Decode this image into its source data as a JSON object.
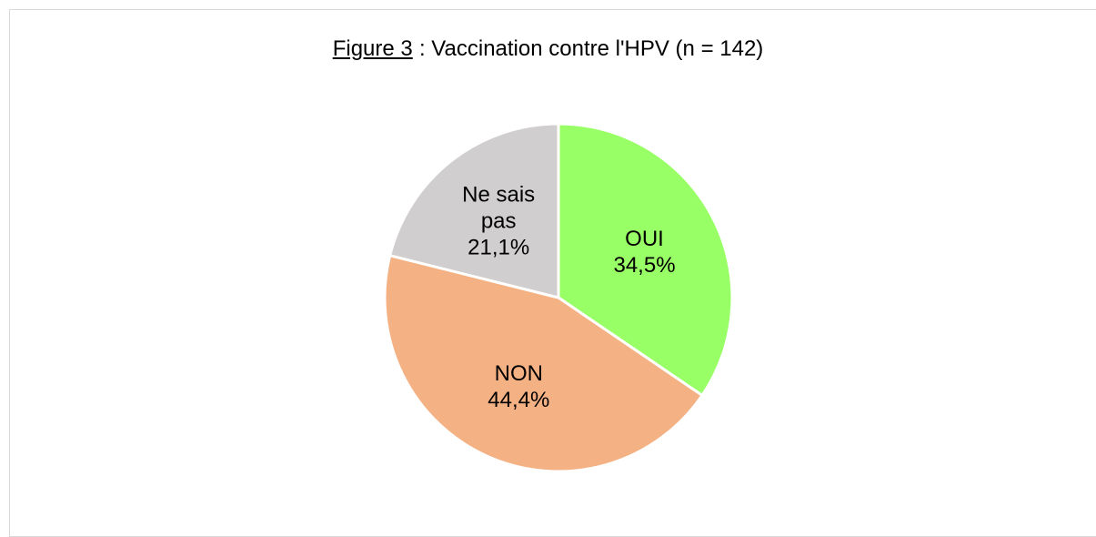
{
  "chart_data": {
    "type": "pie",
    "title_label": "Figure 3",
    "title": ": Vaccination contre l'HPV (n = 142)",
    "categories": [
      "OUI",
      "NON",
      "Ne sais pas"
    ],
    "values": [
      34.5,
      44.4,
      21.1
    ],
    "value_labels": [
      "34,5%",
      "44,4%",
      "21,1%"
    ],
    "colors": [
      "#99ff66",
      "#f4b183",
      "#d0cece"
    ]
  }
}
